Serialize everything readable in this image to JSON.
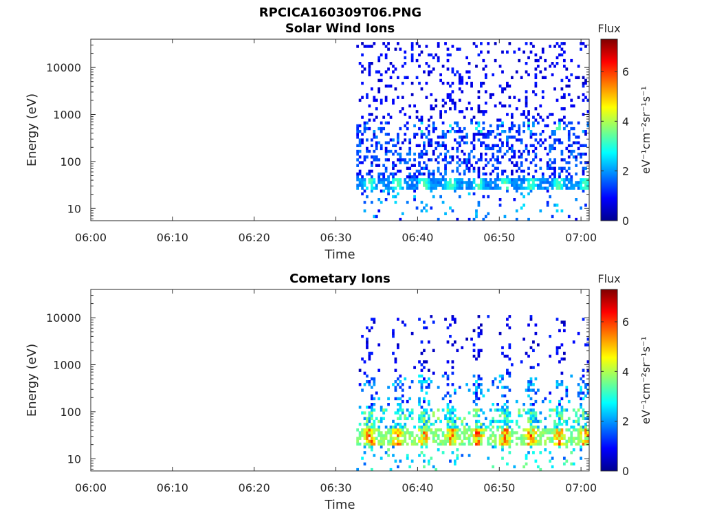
{
  "figure": {
    "filename": "RPCICA160309T06.PNG"
  },
  "chart_data": [
    {
      "type": "heatmap",
      "title": "Solar Wind Ions",
      "xlabel": "Time",
      "ylabel": "Energy (eV)",
      "x_ticks": [
        "06:00",
        "06:10",
        "06:20",
        "06:30",
        "06:40",
        "06:50",
        "07:00"
      ],
      "xlim": [
        "06:00",
        "07:01"
      ],
      "y_scale": "log",
      "y_ticks": [
        10,
        100,
        1000,
        10000
      ],
      "y_tick_labels": [
        "10",
        "100",
        "1000",
        "10000"
      ],
      "ylim": [
        5.5,
        40000
      ],
      "data_start": "06:32.5",
      "data_end": "07:01",
      "colorbar": {
        "title": "Flux",
        "label": "eV⁻¹cm⁻²sr⁻¹s⁻¹",
        "range": [
          0,
          7.3
        ],
        "ticks": [
          0,
          2,
          4,
          6
        ],
        "colormap": "jet"
      },
      "features": [
        {
          "energy_range": [
            25,
            45
          ],
          "flux_range": [
            2,
            3.5
          ],
          "description": "periodic band"
        },
        {
          "energy_range": [
            400,
            700
          ],
          "flux_range": [
            3,
            4.5
          ],
          "description": "sparse hot spots"
        }
      ]
    },
    {
      "type": "heatmap",
      "title": "Cometary Ions",
      "xlabel": "Time",
      "ylabel": "Energy (eV)",
      "x_ticks": [
        "06:00",
        "06:10",
        "06:20",
        "06:30",
        "06:40",
        "06:50",
        "07:00"
      ],
      "xlim": [
        "06:00",
        "07:01"
      ],
      "y_scale": "log",
      "y_ticks": [
        10,
        100,
        1000,
        10000
      ],
      "y_tick_labels": [
        "10",
        "100",
        "1000",
        "10000"
      ],
      "ylim": [
        5.5,
        40000
      ],
      "data_start": "06:32.5",
      "data_end": "07:01",
      "colorbar": {
        "title": "Flux",
        "label": "eV⁻¹cm⁻²sr⁻¹s⁻¹",
        "range": [
          0,
          7.3
        ],
        "ticks": [
          0,
          2,
          4,
          6
        ],
        "colormap": "jet"
      },
      "features": [
        {
          "energy_range": [
            18,
            45
          ],
          "flux_range": [
            4.5,
            6.5
          ],
          "description": "periodic intense band"
        },
        {
          "energy_range": [
            50,
            110
          ],
          "flux_range": [
            2,
            4
          ],
          "description": "upper band"
        }
      ]
    }
  ]
}
